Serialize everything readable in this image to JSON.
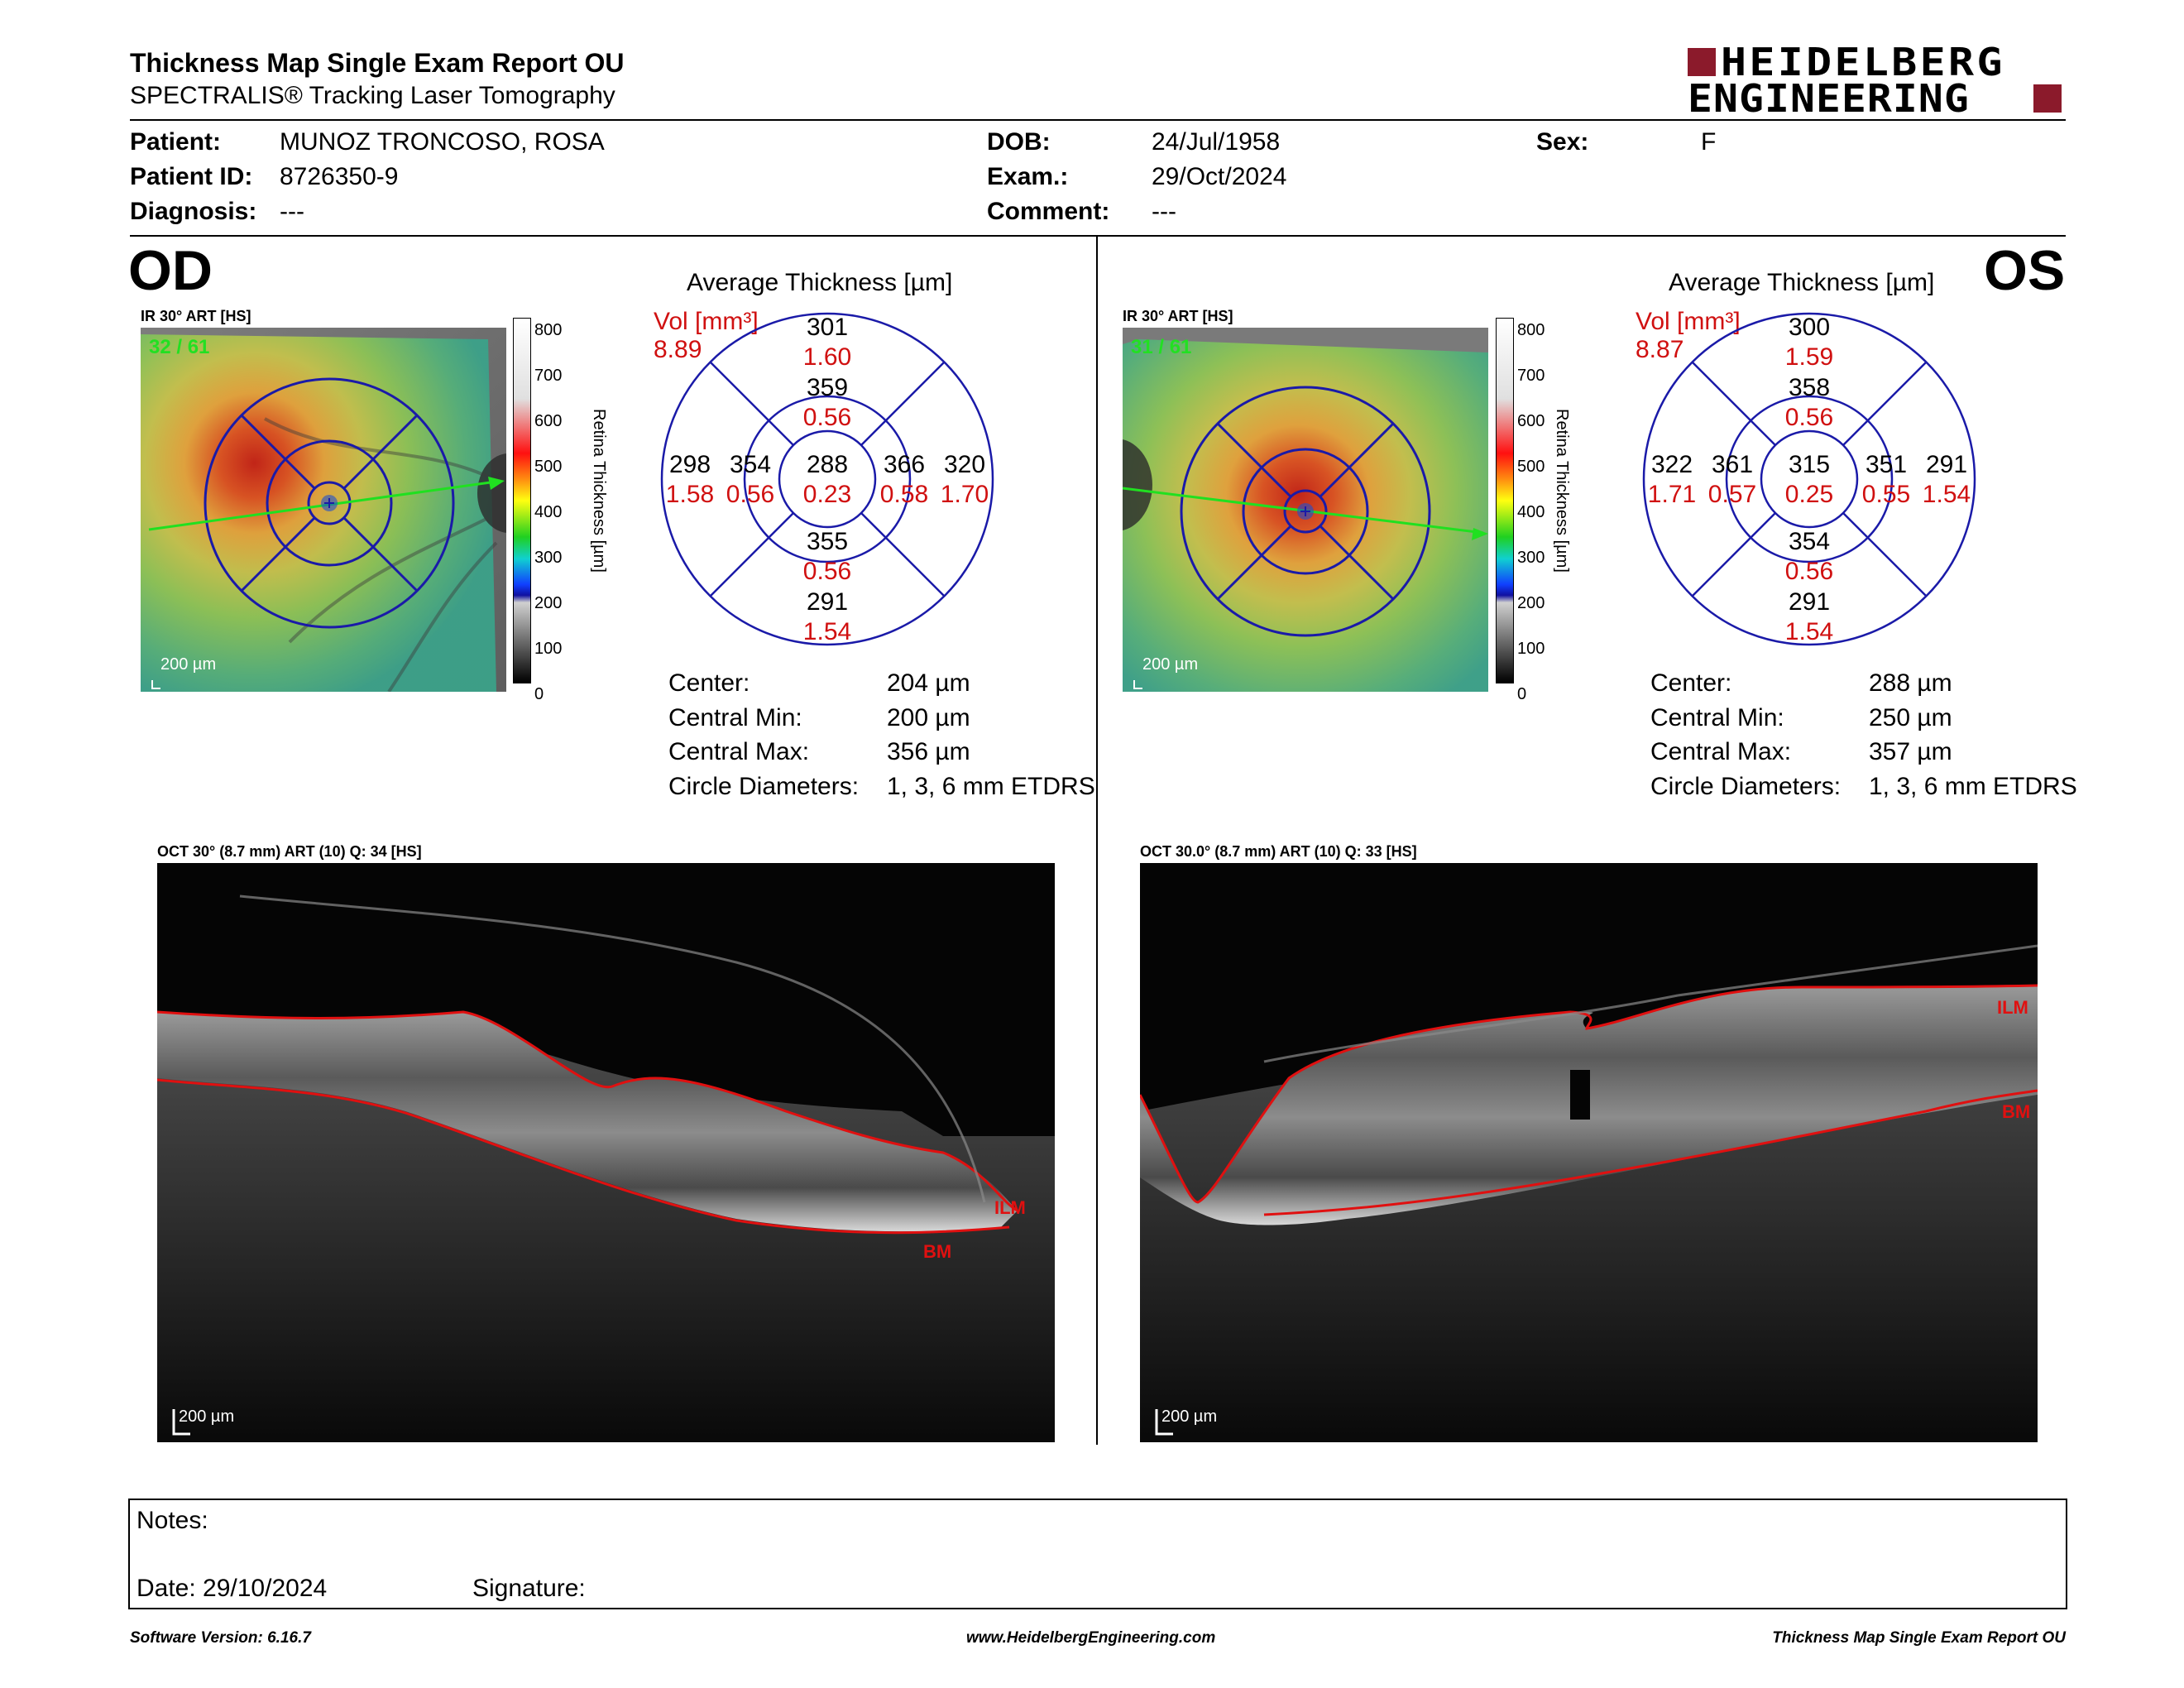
{
  "header": {
    "title": "Thickness Map Single Exam Report OU",
    "subtitle": "SPECTRALIS® Tracking Laser Tomography",
    "logo_line1": "HEIDELBERG",
    "logo_line2": "ENGINEERING",
    "logo_color": "#8b1a2b"
  },
  "patient": {
    "patient_label": "Patient:",
    "patient_value": "MUNOZ TRONCOSO, ROSA",
    "id_label": "Patient ID:",
    "id_value": "8726350-9",
    "diag_label": "Diagnosis:",
    "diag_value": "---",
    "dob_label": "DOB:",
    "dob_value": "24/Jul/1958",
    "exam_label": "Exam.:",
    "exam_value": "29/Oct/2024",
    "comment_label": "Comment:",
    "comment_value": "---",
    "sex_label": "Sex:",
    "sex_value": "F"
  },
  "od": {
    "eye": "OD",
    "ir_label": "IR 30° ART [HS]",
    "ir_counter": "32 / 61",
    "scale": "200 µm",
    "avg_title": "Average Thickness [µm]",
    "vol_label": "Vol [mm³]",
    "vol_value": "8.89",
    "grid": {
      "center": {
        "t": "288",
        "v": "0.23"
      },
      "inner_sup": {
        "t": "359",
        "v": "0.56"
      },
      "inner_inf": {
        "t": "355",
        "v": "0.56"
      },
      "inner_left": {
        "t": "354",
        "v": "0.56"
      },
      "inner_right": {
        "t": "366",
        "v": "0.58"
      },
      "outer_sup": {
        "t": "301",
        "v": "1.60"
      },
      "outer_inf": {
        "t": "291",
        "v": "1.54"
      },
      "outer_left": {
        "t": "298",
        "v": "1.58"
      },
      "outer_right": {
        "t": "320",
        "v": "1.70"
      }
    },
    "stats": [
      {
        "label": "Center:",
        "value": "204 µm"
      },
      {
        "label": "Central Min:",
        "value": "200 µm"
      },
      {
        "label": "Central Max:",
        "value": "356 µm"
      },
      {
        "label": "Circle Diameters:",
        "value": "1, 3, 6 mm ETDRS"
      }
    ],
    "oct_label": "OCT 30° (8.7 mm) ART (10) Q: 34 [HS]",
    "oct_scale": "200 µm",
    "ilm": "ILM",
    "bm": "BM"
  },
  "os": {
    "eye": "OS",
    "ir_label": "IR 30° ART [HS]",
    "ir_counter": "31 / 61",
    "scale": "200 µm",
    "avg_title": "Average Thickness [µm]",
    "vol_label": "Vol [mm³]",
    "vol_value": "8.87",
    "grid": {
      "center": {
        "t": "315",
        "v": "0.25"
      },
      "inner_sup": {
        "t": "358",
        "v": "0.56"
      },
      "inner_inf": {
        "t": "354",
        "v": "0.56"
      },
      "inner_left": {
        "t": "361",
        "v": "0.57"
      },
      "inner_right": {
        "t": "351",
        "v": "0.55"
      },
      "outer_sup": {
        "t": "300",
        "v": "1.59"
      },
      "outer_inf": {
        "t": "291",
        "v": "1.54"
      },
      "outer_left": {
        "t": "322",
        "v": "1.71"
      },
      "outer_right": {
        "t": "291",
        "v": "1.54"
      }
    },
    "stats": [
      {
        "label": "Center:",
        "value": "288 µm"
      },
      {
        "label": "Central Min:",
        "value": "250 µm"
      },
      {
        "label": "Central Max:",
        "value": "357 µm"
      },
      {
        "label": "Circle Diameters:",
        "value": "1, 3, 6 mm ETDRS"
      }
    ],
    "oct_label": "OCT 30.0° (8.7 mm) ART (10) Q: 33 [HS]",
    "oct_scale": "200 µm",
    "ilm": "ILM",
    "bm": "BM"
  },
  "colorbar": {
    "ticks": [
      "800",
      "700",
      "600",
      "500",
      "400",
      "300",
      "200",
      "100",
      "0"
    ],
    "label": "Retina Thickness [µm]"
  },
  "notes": {
    "notes_label": "Notes:",
    "date_label": "Date: 29/10/2024",
    "signature_label": "Signature:"
  },
  "footer": {
    "left": "Software Version: 6.16.7",
    "center": "www.HeidelbergEngineering.com",
    "right": "Thickness Map Single Exam Report OU"
  }
}
